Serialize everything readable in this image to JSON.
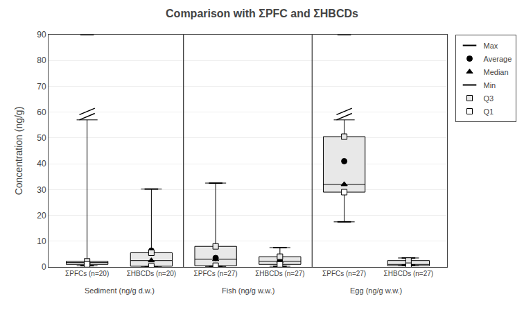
{
  "chart_data": {
    "type": "box",
    "title": "Comparison with ΣPFC and ΣHBCDs",
    "ylabel": "Concentration (ng/g)",
    "categories": [
      "ΣPFCs (n=20)",
      "ΣHBCDs (n=20)",
      "ΣPFCs (n=27)",
      "ΣHBCDs (n=27)",
      "ΣPFCs (n=27)",
      "ΣHBCDs (n=27)"
    ],
    "groups": [
      "Sediment (ng/g d.w.)",
      "Fish (ng/g w.w.)",
      "Egg (ng/g w.w.)"
    ],
    "series": [
      {
        "name": "Max",
        "color": "#000000",
        "marker": "line-ew",
        "values": [
          90,
          30.2,
          32.5,
          7.5,
          90,
          3.5
        ],
        "whisker_top": [
          57,
          30.2,
          32.5,
          7.5,
          57,
          3.5
        ]
      },
      {
        "name": "Average",
        "color": "#000000",
        "marker": "circle",
        "values": [
          1.9,
          6.3,
          3.5,
          2.3,
          41.0,
          1.2
        ]
      },
      {
        "name": "Median",
        "color": "#000000",
        "marker": "triangle-up",
        "values": [
          1.7,
          2.5,
          3.0,
          2.2,
          32.0,
          1.0
        ]
      },
      {
        "name": "Min",
        "color": "#000000",
        "marker": "line-ew",
        "values": [
          0.5,
          0.05,
          0.2,
          0.3,
          17.5,
          0.8
        ]
      },
      {
        "name": "Q3",
        "color": "#e8e8e8",
        "marker": "square",
        "values": [
          2.2,
          5.5,
          8.0,
          4.0,
          50.5,
          2.5
        ]
      },
      {
        "name": "Q1",
        "color": "#ffffff",
        "marker": "square",
        "values": [
          1.0,
          0.3,
          0.5,
          1.0,
          29.0,
          0.5
        ]
      }
    ],
    "ylim": [
      0,
      90
    ],
    "yticks": [
      0,
      10,
      20,
      30,
      40,
      50,
      60,
      70,
      80,
      90
    ],
    "grid": true,
    "legend": "right"
  }
}
